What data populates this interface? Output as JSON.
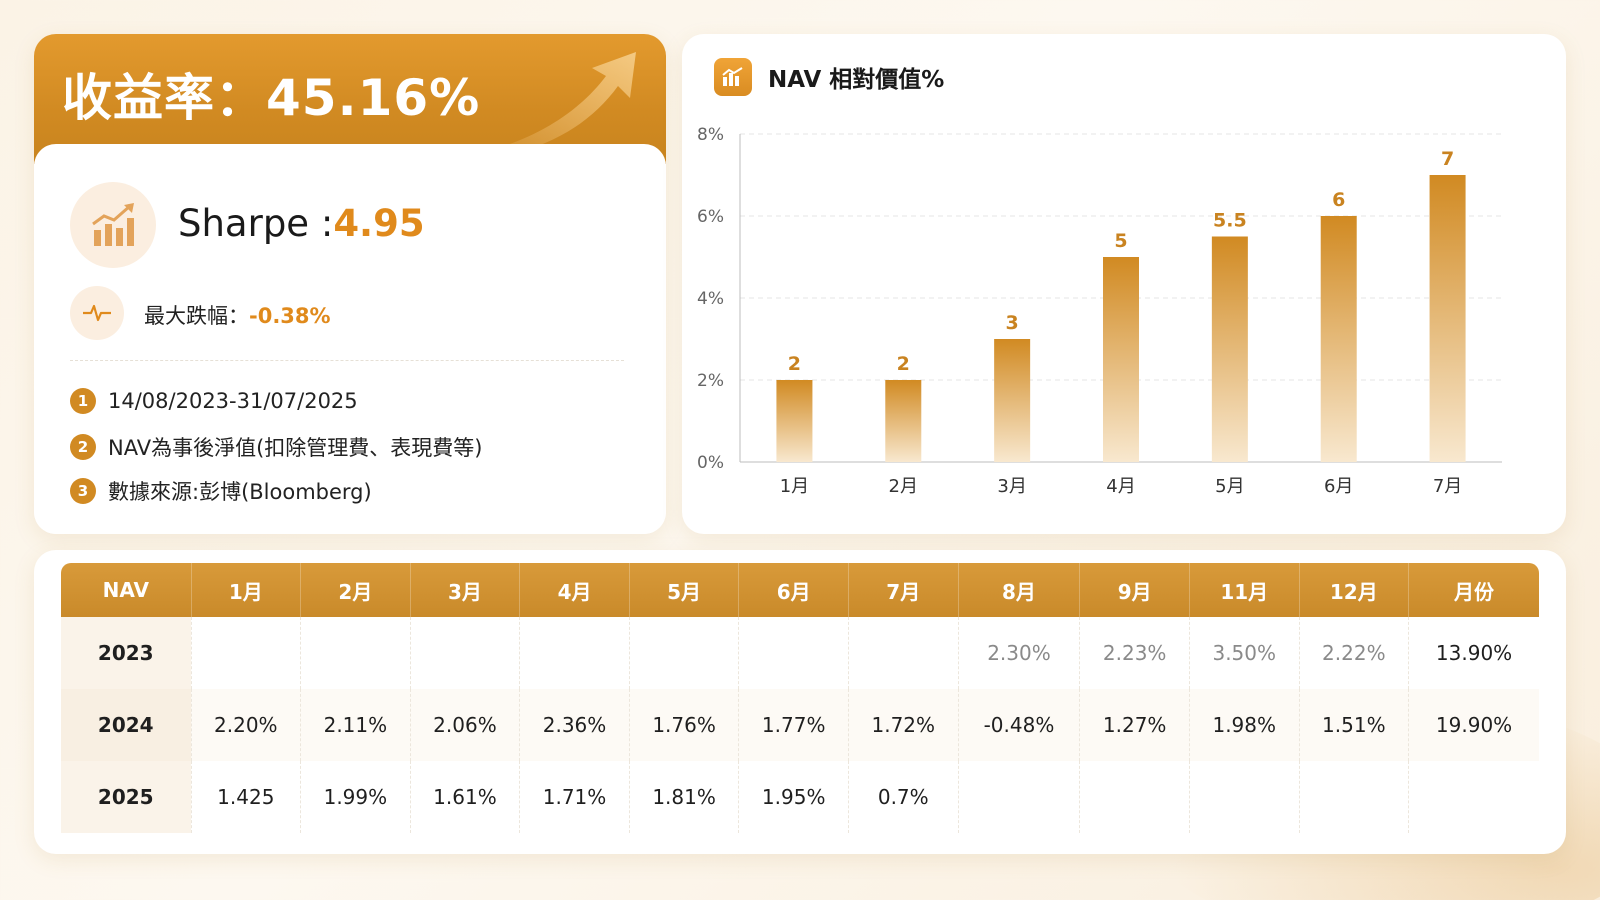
{
  "summary": {
    "return_label": "收益率：45.16%",
    "sharpe_label": "Sharpe :",
    "sharpe_value": "4.95",
    "drawdown_label": "最大跌幅：",
    "drawdown_value": "-0.38%",
    "notes": [
      {
        "num": "1",
        "text": "14/08/2023-31/07/2025"
      },
      {
        "num": "2",
        "text": "NAV為事後淨值(扣除管理費、表現費等)"
      },
      {
        "num": "3",
        "text": "數據來源:彭博(Bloomberg)"
      }
    ]
  },
  "icons": {
    "return_arrow": "trend-arrow-icon",
    "sharpe": "bar-chart-growth-icon",
    "drawdown": "pulse-icon",
    "chart": "bar-chart-icon"
  },
  "colors": {
    "accent": "#e08a1c",
    "header": "#d18a22",
    "bar_top": "#d18a22",
    "bar_bottom": "#f6e3c6"
  },
  "chart_data": {
    "type": "bar",
    "title": "NAV 相對價值%",
    "categories": [
      "1月",
      "2月",
      "3月",
      "4月",
      "5月",
      "6月",
      "7月"
    ],
    "values": [
      2,
      2,
      3,
      5,
      5.5,
      6,
      7
    ],
    "data_labels": [
      "2",
      "2",
      "3",
      "5",
      "5.5",
      "6",
      "7"
    ],
    "yticks": [
      "0%",
      "2%",
      "4%",
      "6%",
      "8%"
    ],
    "ylim": [
      0,
      8
    ],
    "grid": true,
    "legend": "none"
  },
  "table": {
    "headers": [
      "NAV",
      "1月",
      "2月",
      "3月",
      "4月",
      "5月",
      "6月",
      "7月",
      "8月",
      "9月",
      "11月",
      "12月",
      "月份"
    ],
    "rows": [
      {
        "year": "2023",
        "cells": [
          "",
          "",
          "",
          "",
          "",
          "",
          "",
          "2.30%",
          "2.23%",
          "3.50%",
          "2.22%",
          "13.90%"
        ]
      },
      {
        "year": "2024",
        "cells": [
          "2.20%",
          "2.11%",
          "2.06%",
          "2.36%",
          "1.76%",
          "1.77%",
          "1.72%",
          "-0.48%",
          "1.27%",
          "1.98%",
          "1.51%",
          "19.90%"
        ]
      },
      {
        "year": "2025",
        "cells": [
          "1.425",
          "1.99%",
          "1.61%",
          "1.71%",
          "1.81%",
          "1.95%",
          "0.7%",
          "",
          "",
          "",
          "",
          ""
        ]
      }
    ]
  }
}
